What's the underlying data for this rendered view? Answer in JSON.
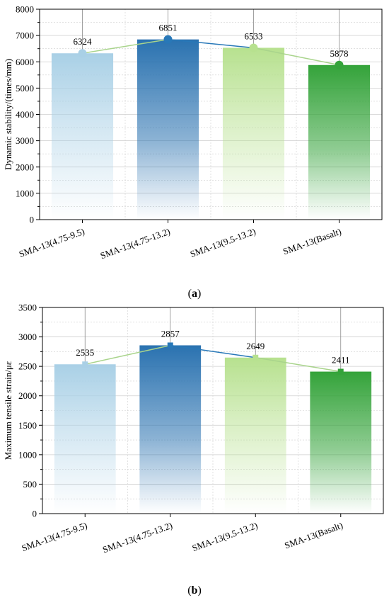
{
  "colors": {
    "bar1": "#a9d0e6",
    "bar2": "#2a72b0",
    "bar3": "#b7e18f",
    "bar4": "#34a33a",
    "line_dark": "#2878b8",
    "line_light": "#a9d48c",
    "axis": "#000000",
    "grid": "#cfcfcf"
  },
  "panels": [
    {
      "open": "(",
      "letter": "a",
      "close": ")"
    },
    {
      "open": "(",
      "letter": "b",
      "close": ")"
    }
  ],
  "chart_data": [
    {
      "type": "bar",
      "title": "",
      "xlabel": "",
      "ylabel": "Dynamic stability/(times/mm)",
      "categories": [
        "SMA-13(4.75-9.5)",
        "SMA-13(4.75-13.2)",
        "SMA-13(9.5-13.2)",
        "SMA-13(Basalt)"
      ],
      "values": [
        6324,
        6851,
        6533,
        5878
      ],
      "data_labels": [
        "6324",
        "6851",
        "6533",
        "5878"
      ],
      "ylim": [
        0,
        8000
      ],
      "yticks": [
        0,
        1000,
        2000,
        3000,
        4000,
        5000,
        6000,
        7000,
        8000
      ],
      "ytick_labels": [
        "0",
        "1000",
        "2000",
        "3000",
        "4000",
        "5000",
        "6000",
        "7000",
        "8000"
      ],
      "overlay_line": true,
      "marker": "circle",
      "grid": true
    },
    {
      "type": "bar",
      "title": "",
      "xlabel": "",
      "ylabel": "Maximum tensile strain/με",
      "categories": [
        "SMA-13(4.75-9.5)",
        "SMA-13(4.75-13.2)",
        "SMA-13(9.5-13.2)",
        "SMA-13(Basalt)"
      ],
      "values": [
        2535,
        2857,
        2649,
        2411
      ],
      "data_labels": [
        "2535",
        "2857",
        "2649",
        "2411"
      ],
      "ylim": [
        0,
        3500
      ],
      "yticks": [
        0,
        500,
        1000,
        1500,
        2000,
        2500,
        3000,
        3500
      ],
      "ytick_labels": [
        "0",
        "500",
        "1000",
        "1500",
        "2000",
        "2500",
        "3000",
        "3500"
      ],
      "overlay_line": true,
      "marker": "square",
      "grid": true
    }
  ]
}
